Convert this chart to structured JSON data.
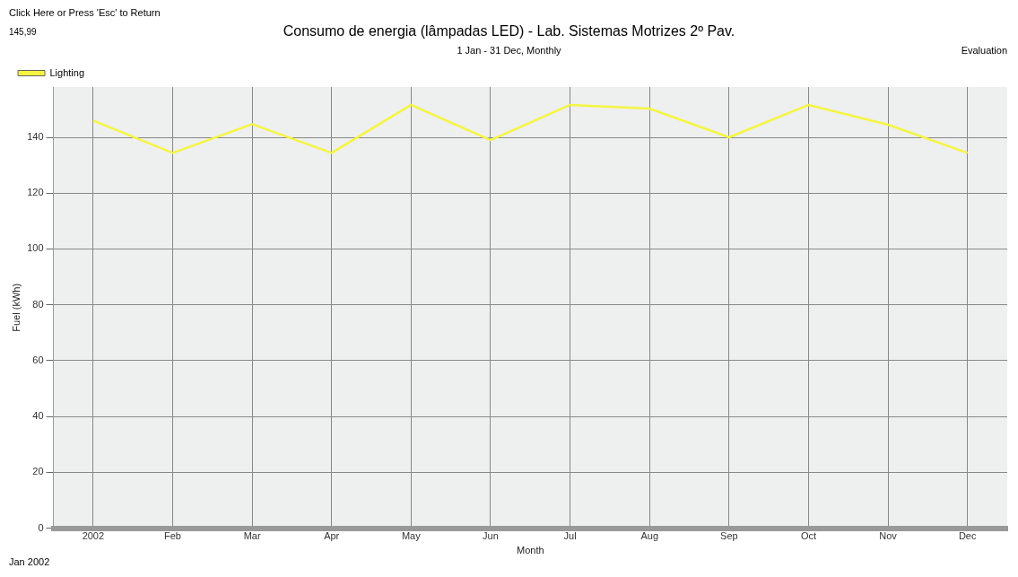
{
  "chart_data": {
    "type": "line",
    "title": "Consumo de energia (lâmpadas LED) - Lab. Sistemas Motrizes 2º Pav.",
    "subtitle": "1 Jan - 31 Dec, Monthly",
    "xlabel": "Month",
    "ylabel": "Fuel (kWh)",
    "annotations": [
      "Click Here or Press 'Esc' to Return",
      "145,99",
      "Evaluation",
      "Jan 2002"
    ],
    "categories": [
      "2002",
      "Feb",
      "Mar",
      "Apr",
      "May",
      "Jun",
      "Jul",
      "Aug",
      "Sep",
      "Oct",
      "Nov",
      "Dec"
    ],
    "series": [
      {
        "name": "Lighting",
        "color": "#f5f542",
        "values": [
          146,
          134.4,
          144.7,
          134.4,
          151.6,
          139,
          151.6,
          150.3,
          140,
          151.6,
          144.5,
          134.4
        ]
      }
    ],
    "ylim": [
      0,
      158
    ],
    "yticks": [
      0,
      20,
      40,
      60,
      80,
      100,
      120,
      140
    ],
    "grid": true,
    "legend": "top left",
    "marker": "none",
    "line_style": "solid"
  }
}
